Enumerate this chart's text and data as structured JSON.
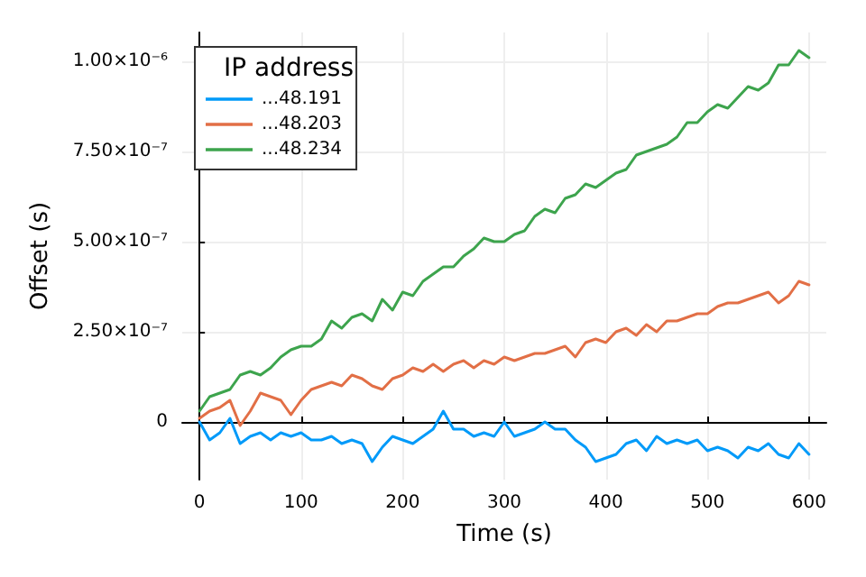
{
  "chart_data": {
    "type": "line",
    "xlabel": "Time (s)",
    "ylabel": "Offset (s)",
    "legend_title": "IP address",
    "legend": "top left",
    "grid": true,
    "line_style": "solid",
    "xlim": [
      -17,
      617
    ],
    "xticks": [
      0,
      100,
      200,
      300,
      400,
      500,
      600
    ],
    "ylim": [
      -1.6e-07,
      1.08e-06
    ],
    "yticks": [
      0,
      {
        "value": 2.5e-07,
        "label": "2.50×10⁻⁷"
      },
      {
        "value": 5e-07,
        "label": "5.00×10⁻⁷"
      },
      {
        "value": 7.5e-07,
        "label": "7.50×10⁻⁷"
      },
      {
        "value": 1e-06,
        "label": "1.00×10⁻⁶"
      }
    ],
    "x": [
      0,
      10,
      20,
      30,
      40,
      50,
      60,
      70,
      80,
      90,
      100,
      110,
      120,
      130,
      140,
      150,
      160,
      170,
      180,
      190,
      200,
      210,
      220,
      230,
      240,
      250,
      260,
      270,
      280,
      290,
      300,
      310,
      320,
      330,
      340,
      350,
      360,
      370,
      380,
      390,
      400,
      410,
      420,
      430,
      440,
      450,
      460,
      470,
      480,
      490,
      500,
      510,
      520,
      530,
      540,
      550,
      560,
      570,
      580,
      590,
      600
    ],
    "series": [
      {
        "name": "...48.191",
        "color": "#009af9",
        "values": [
          0,
          -5e-08,
          -3e-08,
          1e-08,
          -6e-08,
          -4e-08,
          -3e-08,
          -5e-08,
          -3e-08,
          -4e-08,
          -3e-08,
          -5e-08,
          -5e-08,
          -4e-08,
          -6e-08,
          -5e-08,
          -6e-08,
          -1.1e-07,
          -7e-08,
          -4e-08,
          -5e-08,
          -6e-08,
          -4e-08,
          -2e-08,
          3e-08,
          -2e-08,
          -2e-08,
          -4e-08,
          -3e-08,
          -4e-08,
          0,
          -4e-08,
          -3e-08,
          -2e-08,
          0,
          -2e-08,
          -2e-08,
          -5e-08,
          -7e-08,
          -1.1e-07,
          -1e-07,
          -9e-08,
          -6e-08,
          -5e-08,
          -8e-08,
          -4e-08,
          -6e-08,
          -5e-08,
          -6e-08,
          -5e-08,
          -8e-08,
          -7e-08,
          -8e-08,
          -1e-07,
          -7e-08,
          -8e-08,
          -6e-08,
          -9e-08,
          -1e-07,
          -6e-08,
          -9e-08
        ]
      },
      {
        "name": "...48.203",
        "color": "#e26f46",
        "values": [
          1e-08,
          3e-08,
          4e-08,
          6e-08,
          -1e-08,
          3e-08,
          8e-08,
          7e-08,
          6e-08,
          2e-08,
          6e-08,
          9e-08,
          1e-07,
          1.1e-07,
          1e-07,
          1.3e-07,
          1.2e-07,
          1e-07,
          9e-08,
          1.2e-07,
          1.3e-07,
          1.5e-07,
          1.4e-07,
          1.6e-07,
          1.4e-07,
          1.6e-07,
          1.7e-07,
          1.5e-07,
          1.7e-07,
          1.6e-07,
          1.8e-07,
          1.7e-07,
          1.8e-07,
          1.9e-07,
          1.9e-07,
          2e-07,
          2.1e-07,
          1.8e-07,
          2.2e-07,
          2.3e-07,
          2.2e-07,
          2.5e-07,
          2.6e-07,
          2.4e-07,
          2.7e-07,
          2.5e-07,
          2.8e-07,
          2.8e-07,
          2.9e-07,
          3e-07,
          3e-07,
          3.2e-07,
          3.3e-07,
          3.3e-07,
          3.4e-07,
          3.5e-07,
          3.6e-07,
          3.3e-07,
          3.5e-07,
          3.9e-07,
          3.8e-07
        ]
      },
      {
        "name": "...48.234",
        "color": "#3da44d",
        "values": [
          3e-08,
          7e-08,
          8e-08,
          9e-08,
          1.3e-07,
          1.4e-07,
          1.3e-07,
          1.5e-07,
          1.8e-07,
          2e-07,
          2.1e-07,
          2.1e-07,
          2.3e-07,
          2.8e-07,
          2.6e-07,
          2.9e-07,
          3e-07,
          2.8e-07,
          3.4e-07,
          3.1e-07,
          3.6e-07,
          3.5e-07,
          3.9e-07,
          4.1e-07,
          4.3e-07,
          4.3e-07,
          4.6e-07,
          4.8e-07,
          5.1e-07,
          5e-07,
          5e-07,
          5.2e-07,
          5.3e-07,
          5.7e-07,
          5.9e-07,
          5.8e-07,
          6.2e-07,
          6.3e-07,
          6.6e-07,
          6.5e-07,
          6.7e-07,
          6.9e-07,
          7e-07,
          7.4e-07,
          7.5e-07,
          7.6e-07,
          7.7e-07,
          7.9e-07,
          8.3e-07,
          8.3e-07,
          8.6e-07,
          8.8e-07,
          8.7e-07,
          9e-07,
          9.3e-07,
          9.2e-07,
          9.4e-07,
          9.9e-07,
          9.9e-07,
          1.03e-06,
          1.01e-06
        ]
      }
    ]
  }
}
